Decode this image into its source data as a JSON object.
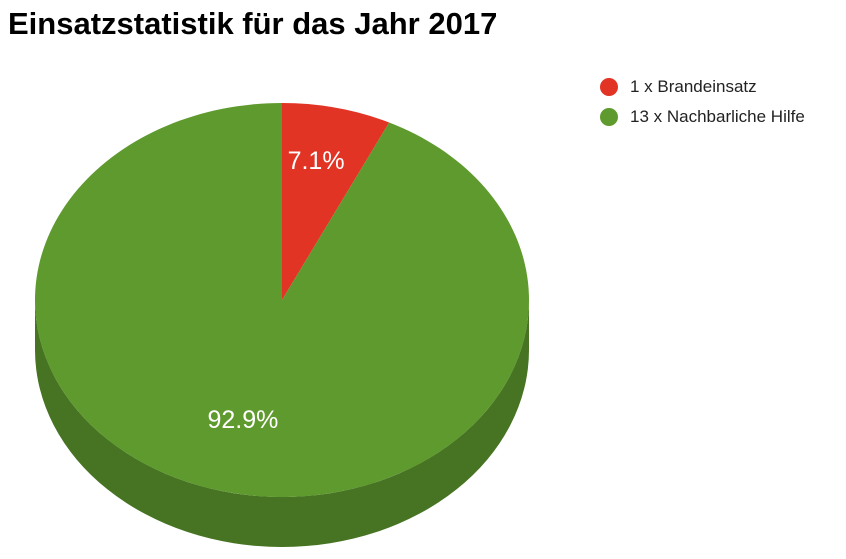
{
  "chart_data": {
    "type": "pie",
    "style": "3d",
    "title": "Einsatzstatistik für das Jahr 2017",
    "legend_position": "top-right",
    "slices": [
      {
        "label": "1 x Brandeinsatz",
        "value": 1,
        "percent_label": "7.1%",
        "color": "#e23424",
        "side_color": "#b32a1d"
      },
      {
        "label": "13 x Nachbarliche Hilfe",
        "value": 13,
        "percent_label": "92.9%",
        "color": "#5f9a2e",
        "side_color": "#467422"
      }
    ]
  }
}
